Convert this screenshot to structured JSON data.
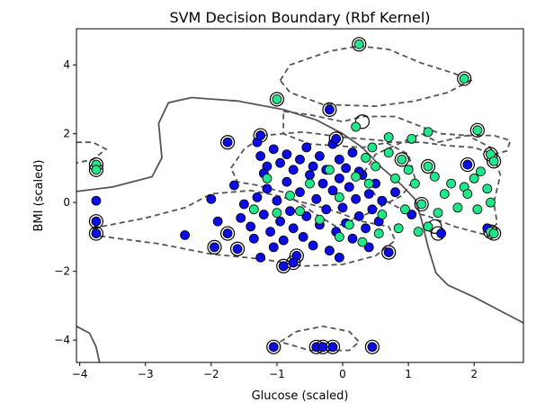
{
  "chart_data": {
    "type": "scatter",
    "title": "SVM Decision Boundary (Rbf Kernel)",
    "xlabel": "Glucose (scaled)",
    "ylabel": "BMI (scaled)",
    "xlim": [
      -4.05,
      2.75
    ],
    "ylim": [
      -4.65,
      5.05
    ],
    "xticks": [
      -4,
      -3,
      -2,
      -1,
      0,
      1,
      2
    ],
    "yticks": [
      -4,
      -2,
      0,
      2,
      4
    ],
    "grid": false,
    "legend": "none",
    "colors": {
      "class_0": "#0c0ce6",
      "class_1": "#21e68a",
      "decision_line": "#555555",
      "support_vector_ring": "#000000"
    },
    "decision_boundary": [
      [
        -4.05,
        0.32
      ],
      [
        -3.5,
        0.45
      ],
      [
        -2.9,
        0.75
      ],
      [
        -2.75,
        1.3
      ],
      [
        -2.8,
        2.3
      ],
      [
        -2.65,
        2.9
      ],
      [
        -2.3,
        3.05
      ],
      [
        -1.6,
        2.95
      ],
      [
        -0.9,
        2.7
      ],
      [
        -0.4,
        2.4
      ],
      [
        0.0,
        2.0
      ],
      [
        0.3,
        1.6
      ],
      [
        0.6,
        1.0
      ],
      [
        0.9,
        0.5
      ],
      [
        1.1,
        0.1
      ],
      [
        1.2,
        -0.5
      ],
      [
        1.3,
        -1.3
      ],
      [
        1.42,
        -2.05
      ],
      [
        1.6,
        -2.4
      ],
      [
        2.0,
        -2.75
      ],
      [
        2.5,
        -3.25
      ],
      [
        2.75,
        -3.5
      ]
    ],
    "decision_boundary_2": [
      [
        -4.05,
        -3.6
      ],
      [
        -3.85,
        -3.8
      ],
      [
        -3.75,
        -4.2
      ],
      [
        -3.7,
        -4.65
      ]
    ],
    "margins": [
      [
        [
          -4.05,
          1.75
        ],
        [
          -3.8,
          1.75
        ],
        [
          -3.6,
          1.55
        ],
        [
          -3.8,
          1.25
        ],
        [
          -4.05,
          1.15
        ]
      ],
      [
        [
          -1.7,
          1.0
        ],
        [
          -1.5,
          1.55
        ],
        [
          -1.2,
          1.95
        ],
        [
          -0.6,
          2.05
        ],
        [
          0.0,
          1.9
        ],
        [
          0.6,
          1.8
        ],
        [
          1.0,
          1.4
        ],
        [
          1.1,
          0.7
        ],
        [
          0.9,
          0.2
        ],
        [
          0.3,
          -0.4
        ],
        [
          -0.1,
          -0.7
        ],
        [
          -0.4,
          -0.35
        ],
        [
          -0.9,
          0.3
        ],
        [
          -1.3,
          0.5
        ],
        [
          -1.6,
          0.6
        ],
        [
          -1.7,
          1.0
        ]
      ],
      [
        [
          -3.8,
          -0.75
        ],
        [
          -3.0,
          -0.45
        ],
        [
          -2.4,
          -0.15
        ],
        [
          -2.0,
          0.25
        ],
        [
          -1.4,
          0.35
        ],
        [
          -1.0,
          0.2
        ],
        [
          -0.6,
          0.0
        ],
        [
          -0.2,
          -0.2
        ],
        [
          0.3,
          -0.55
        ],
        [
          0.7,
          -0.7
        ],
        [
          0.8,
          -1.1
        ],
        [
          0.5,
          -1.55
        ],
        [
          0.0,
          -1.8
        ],
        [
          -0.6,
          -1.85
        ],
        [
          -1.2,
          -1.65
        ],
        [
          -2.0,
          -1.5
        ],
        [
          -2.8,
          -1.2
        ],
        [
          -3.8,
          -0.95
        ],
        [
          -3.8,
          -0.75
        ]
      ],
      [
        [
          -0.95,
          -4.05
        ],
        [
          -0.7,
          -3.75
        ],
        [
          -0.3,
          -3.6
        ],
        [
          0.1,
          -3.75
        ],
        [
          0.25,
          -4.05
        ],
        [
          0.1,
          -4.3
        ],
        [
          -0.5,
          -4.3
        ],
        [
          -0.95,
          -4.05
        ]
      ],
      [
        [
          1.45,
          1.75
        ],
        [
          1.9,
          1.95
        ],
        [
          2.25,
          1.6
        ],
        [
          2.4,
          0.8
        ],
        [
          2.3,
          0.0
        ],
        [
          2.35,
          -0.6
        ],
        [
          2.2,
          -0.95
        ],
        [
          1.7,
          -0.7
        ],
        [
          1.3,
          -0.4
        ],
        [
          0.9,
          -0.2
        ],
        [
          0.5,
          0.2
        ],
        [
          0.3,
          0.8
        ],
        [
          0.5,
          1.4
        ],
        [
          0.9,
          1.75
        ],
        [
          1.2,
          2.0
        ],
        [
          1.45,
          1.75
        ]
      ],
      [
        [
          -0.9,
          2.65
        ],
        [
          -0.5,
          2.55
        ],
        [
          0.0,
          2.35
        ],
        [
          0.3,
          2.5
        ],
        [
          0.8,
          2.5
        ],
        [
          1.2,
          2.2
        ],
        [
          1.5,
          2.0
        ],
        [
          1.9,
          1.95
        ],
        [
          2.3,
          1.95
        ],
        [
          2.55,
          1.8
        ],
        [
          2.5,
          1.5
        ],
        [
          2.3,
          1.4
        ],
        [
          2.0,
          1.6
        ],
        [
          1.6,
          1.65
        ],
        [
          1.2,
          1.75
        ],
        [
          0.7,
          1.75
        ],
        [
          0.3,
          1.6
        ],
        [
          -0.5,
          1.7
        ],
        [
          -0.9,
          2.0
        ],
        [
          -0.9,
          2.65
        ]
      ],
      [
        [
          -0.95,
          3.55
        ],
        [
          -0.8,
          4.0
        ],
        [
          -0.2,
          4.4
        ],
        [
          0.25,
          4.55
        ],
        [
          0.7,
          4.45
        ],
        [
          1.2,
          4.05
        ],
        [
          1.7,
          3.75
        ],
        [
          1.95,
          3.55
        ],
        [
          1.6,
          3.2
        ],
        [
          1.1,
          2.95
        ],
        [
          0.5,
          2.8
        ],
        [
          -0.3,
          2.85
        ],
        [
          -0.8,
          3.2
        ],
        [
          -0.95,
          3.55
        ]
      ]
    ],
    "series": [
      {
        "values": [
          [
            -3.75,
            -0.55
          ],
          [
            -3.75,
            -0.9
          ],
          [
            -3.75,
            0.05
          ],
          [
            -2.4,
            -0.95
          ],
          [
            -2.0,
            0.1
          ],
          [
            -1.95,
            -1.3
          ],
          [
            -1.9,
            -0.55
          ],
          [
            -1.75,
            -0.9
          ],
          [
            -1.65,
            0.5
          ],
          [
            -1.6,
            -1.35
          ],
          [
            -1.55,
            -0.45
          ],
          [
            -1.5,
            -0.05
          ],
          [
            -1.4,
            -0.7
          ],
          [
            -1.35,
            -1.05
          ],
          [
            -1.3,
            0.15
          ],
          [
            -1.25,
            -1.6
          ],
          [
            -1.2,
            -0.35
          ],
          [
            -1.15,
            0.4
          ],
          [
            -1.1,
            -0.85
          ],
          [
            -1.05,
            -1.3
          ],
          [
            -1.0,
            0.05
          ],
          [
            -0.95,
            -0.55
          ],
          [
            -0.9,
            -1.1
          ],
          [
            -0.85,
            0.6
          ],
          [
            -0.8,
            -0.25
          ],
          [
            -0.75,
            -0.75
          ],
          [
            -0.7,
            -1.55
          ],
          [
            -0.65,
            0.3
          ],
          [
            -0.6,
            -1.0
          ],
          [
            -0.55,
            -0.4
          ],
          [
            -0.5,
            0.8
          ],
          [
            -0.45,
            -1.25
          ],
          [
            -0.4,
            0.1
          ],
          [
            -0.35,
            -0.65
          ],
          [
            -0.3,
            0.55
          ],
          [
            -0.25,
            -0.2
          ],
          [
            -0.2,
            -1.4
          ],
          [
            -0.15,
            0.35
          ],
          [
            -0.1,
            -0.85
          ],
          [
            -0.05,
            0.7
          ],
          [
            0.0,
            -0.15
          ],
          [
            0.05,
            -0.6
          ],
          [
            0.1,
            0.45
          ],
          [
            0.15,
            -1.05
          ],
          [
            0.2,
            0.1
          ],
          [
            0.25,
            -0.4
          ],
          [
            0.3,
            0.8
          ],
          [
            0.35,
            -0.75
          ],
          [
            0.4,
            0.25
          ],
          [
            0.45,
            -0.2
          ],
          [
            0.5,
            0.55
          ],
          [
            0.55,
            -0.55
          ],
          [
            0.6,
            0.05
          ],
          [
            0.7,
            -1.45
          ],
          [
            0.8,
            0.3
          ],
          [
            1.05,
            -0.35
          ],
          [
            1.5,
            -0.9
          ],
          [
            1.9,
            1.1
          ],
          [
            2.2,
            -0.75
          ],
          [
            -1.3,
            1.75
          ],
          [
            -1.25,
            1.35
          ],
          [
            -1.15,
            1.05
          ],
          [
            -1.2,
            0.85
          ],
          [
            -1.05,
            1.55
          ],
          [
            -0.95,
            1.15
          ],
          [
            -0.85,
            1.4
          ],
          [
            -0.75,
            0.95
          ],
          [
            -0.65,
            1.25
          ],
          [
            -0.55,
            1.6
          ],
          [
            -0.45,
            1.05
          ],
          [
            -0.35,
            1.35
          ],
          [
            -0.25,
            0.95
          ],
          [
            -0.15,
            1.7
          ],
          [
            -0.05,
            1.25
          ],
          [
            0.05,
            1.0
          ],
          [
            0.15,
            1.45
          ],
          [
            0.25,
            0.9
          ],
          [
            -1.75,
            1.75
          ],
          [
            -1.25,
            1.95
          ],
          [
            -0.2,
            2.7
          ],
          [
            -0.1,
            1.85
          ],
          [
            -0.9,
            -1.85
          ],
          [
            -0.75,
            -1.75
          ],
          [
            -0.05,
            -1.6
          ],
          [
            0.4,
            -1.3
          ],
          [
            -1.05,
            -4.2
          ],
          [
            -0.4,
            -4.2
          ],
          [
            -0.3,
            -4.2
          ],
          [
            -0.15,
            -4.2
          ],
          [
            0.45,
            -4.2
          ]
        ]
      },
      {
        "values": [
          [
            -3.75,
            1.1
          ],
          [
            -3.75,
            0.95
          ],
          [
            0.25,
            4.6
          ],
          [
            1.85,
            3.6
          ],
          [
            -1.0,
            3.0
          ],
          [
            2.05,
            2.1
          ],
          [
            2.25,
            1.4
          ],
          [
            2.3,
            1.2
          ],
          [
            2.1,
            0.9
          ],
          [
            2.0,
            0.7
          ],
          [
            2.2,
            0.4
          ],
          [
            2.25,
            0.0
          ],
          [
            2.05,
            -0.2
          ],
          [
            1.85,
            0.45
          ],
          [
            1.65,
            0.55
          ],
          [
            1.55,
            0.25
          ],
          [
            1.4,
            0.75
          ],
          [
            1.3,
            1.05
          ],
          [
            1.2,
            -0.05
          ],
          [
            1.1,
            0.55
          ],
          [
            1.0,
            0.95
          ],
          [
            0.9,
            1.25
          ],
          [
            0.8,
            0.7
          ],
          [
            0.7,
            1.45
          ],
          [
            0.6,
            -0.35
          ],
          [
            0.5,
            1.05
          ],
          [
            0.4,
            0.55
          ],
          [
            0.35,
            1.3
          ],
          [
            0.2,
            0.75
          ],
          [
            0.1,
            -0.65
          ],
          [
            -0.05,
            0.15
          ],
          [
            -0.2,
            0.95
          ],
          [
            -0.35,
            -0.5
          ],
          [
            -0.5,
            0.55
          ],
          [
            -0.65,
            -0.25
          ],
          [
            -0.8,
            0.2
          ],
          [
            -1.0,
            -0.3
          ],
          [
            -1.15,
            0.7
          ],
          [
            -1.35,
            -0.2
          ],
          [
            1.3,
            2.05
          ],
          [
            1.05,
            1.85
          ],
          [
            0.7,
            1.9
          ],
          [
            0.45,
            1.6
          ],
          [
            0.2,
            2.2
          ],
          [
            1.15,
            -0.85
          ],
          [
            1.3,
            -0.7
          ],
          [
            1.45,
            -0.3
          ],
          [
            1.75,
            -0.15
          ],
          [
            1.9,
            0.25
          ],
          [
            2.25,
            -0.85
          ],
          [
            2.3,
            -0.9
          ],
          [
            0.85,
            -0.75
          ],
          [
            0.95,
            -0.2
          ],
          [
            0.55,
            -0.9
          ],
          [
            0.3,
            -1.15
          ],
          [
            -0.05,
            -1.0
          ]
        ]
      }
    ],
    "support_vectors": [
      [
        -3.75,
        1.1
      ],
      [
        -3.75,
        0.95
      ],
      [
        -3.75,
        -0.55
      ],
      [
        -3.75,
        -0.9
      ],
      [
        -1.75,
        1.75
      ],
      [
        -1.25,
        1.95
      ],
      [
        -1.0,
        3.0
      ],
      [
        -0.2,
        2.7
      ],
      [
        -0.1,
        1.85
      ],
      [
        0.25,
        4.6
      ],
      [
        1.85,
        3.6
      ],
      [
        2.05,
        2.1
      ],
      [
        2.25,
        1.4
      ],
      [
        2.3,
        1.2
      ],
      [
        1.9,
        1.1
      ],
      [
        2.25,
        -0.85
      ],
      [
        2.3,
        -0.9
      ],
      [
        1.4,
        -0.7
      ],
      [
        1.45,
        -0.9
      ],
      [
        -1.95,
        -1.3
      ],
      [
        -1.75,
        -0.9
      ],
      [
        -1.6,
        -1.35
      ],
      [
        -0.9,
        -1.85
      ],
      [
        -0.75,
        -1.75
      ],
      [
        -1.05,
        -4.2
      ],
      [
        -0.4,
        -4.2
      ],
      [
        -0.3,
        -4.2
      ],
      [
        -0.15,
        -4.2
      ],
      [
        0.45,
        -4.2
      ],
      [
        0.3,
        2.35
      ],
      [
        -0.7,
        -1.55
      ],
      [
        0.7,
        -1.45
      ],
      [
        1.2,
        -0.05
      ],
      [
        1.3,
        1.05
      ],
      [
        0.9,
        1.25
      ]
    ]
  }
}
